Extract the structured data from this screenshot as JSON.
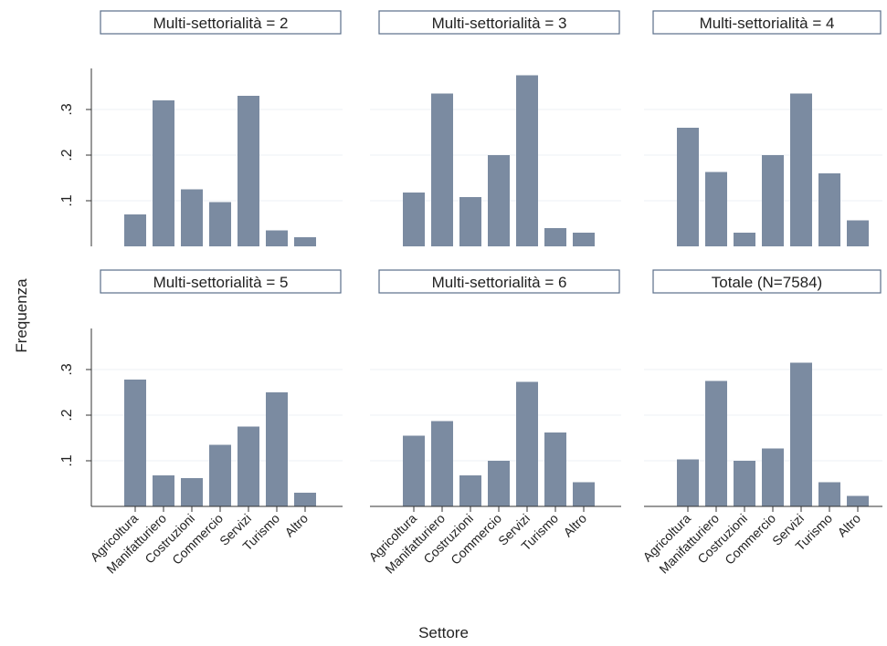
{
  "chart_data": {
    "type": "bar",
    "xlabel": "Settore",
    "ylabel": "Frequenza",
    "categories": [
      "Agricoltura",
      "Manifatturiero",
      "Costruzioni",
      "Commercio",
      "Servizi",
      "Turismo",
      "Altro"
    ],
    "y_ticks": [
      ".1",
      ".2",
      ".3"
    ],
    "ylim": [
      0,
      0.39
    ],
    "grid": true,
    "bar_color": "#7b8ba1",
    "panels": [
      {
        "title": "Multi-settorialità = 2",
        "values": [
          0.07,
          0.32,
          0.125,
          0.097,
          0.33,
          0.035,
          0.02
        ]
      },
      {
        "title": "Multi-settorialità = 3",
        "values": [
          0.118,
          0.335,
          0.108,
          0.2,
          0.375,
          0.04,
          0.03
        ]
      },
      {
        "title": "Multi-settorialità = 4",
        "values": [
          0.26,
          0.163,
          0.03,
          0.2,
          0.335,
          0.16,
          0.057
        ]
      },
      {
        "title": "Multi-settorialità = 5",
        "values": [
          0.278,
          0.068,
          0.062,
          0.135,
          0.175,
          0.25,
          0.03
        ]
      },
      {
        "title": "Multi-settorialità = 6",
        "values": [
          0.155,
          0.187,
          0.068,
          0.1,
          0.273,
          0.162,
          0.053
        ]
      },
      {
        "title": "Totale (N=7584)",
        "values": [
          0.103,
          0.275,
          0.1,
          0.127,
          0.315,
          0.053,
          0.023
        ]
      }
    ]
  }
}
